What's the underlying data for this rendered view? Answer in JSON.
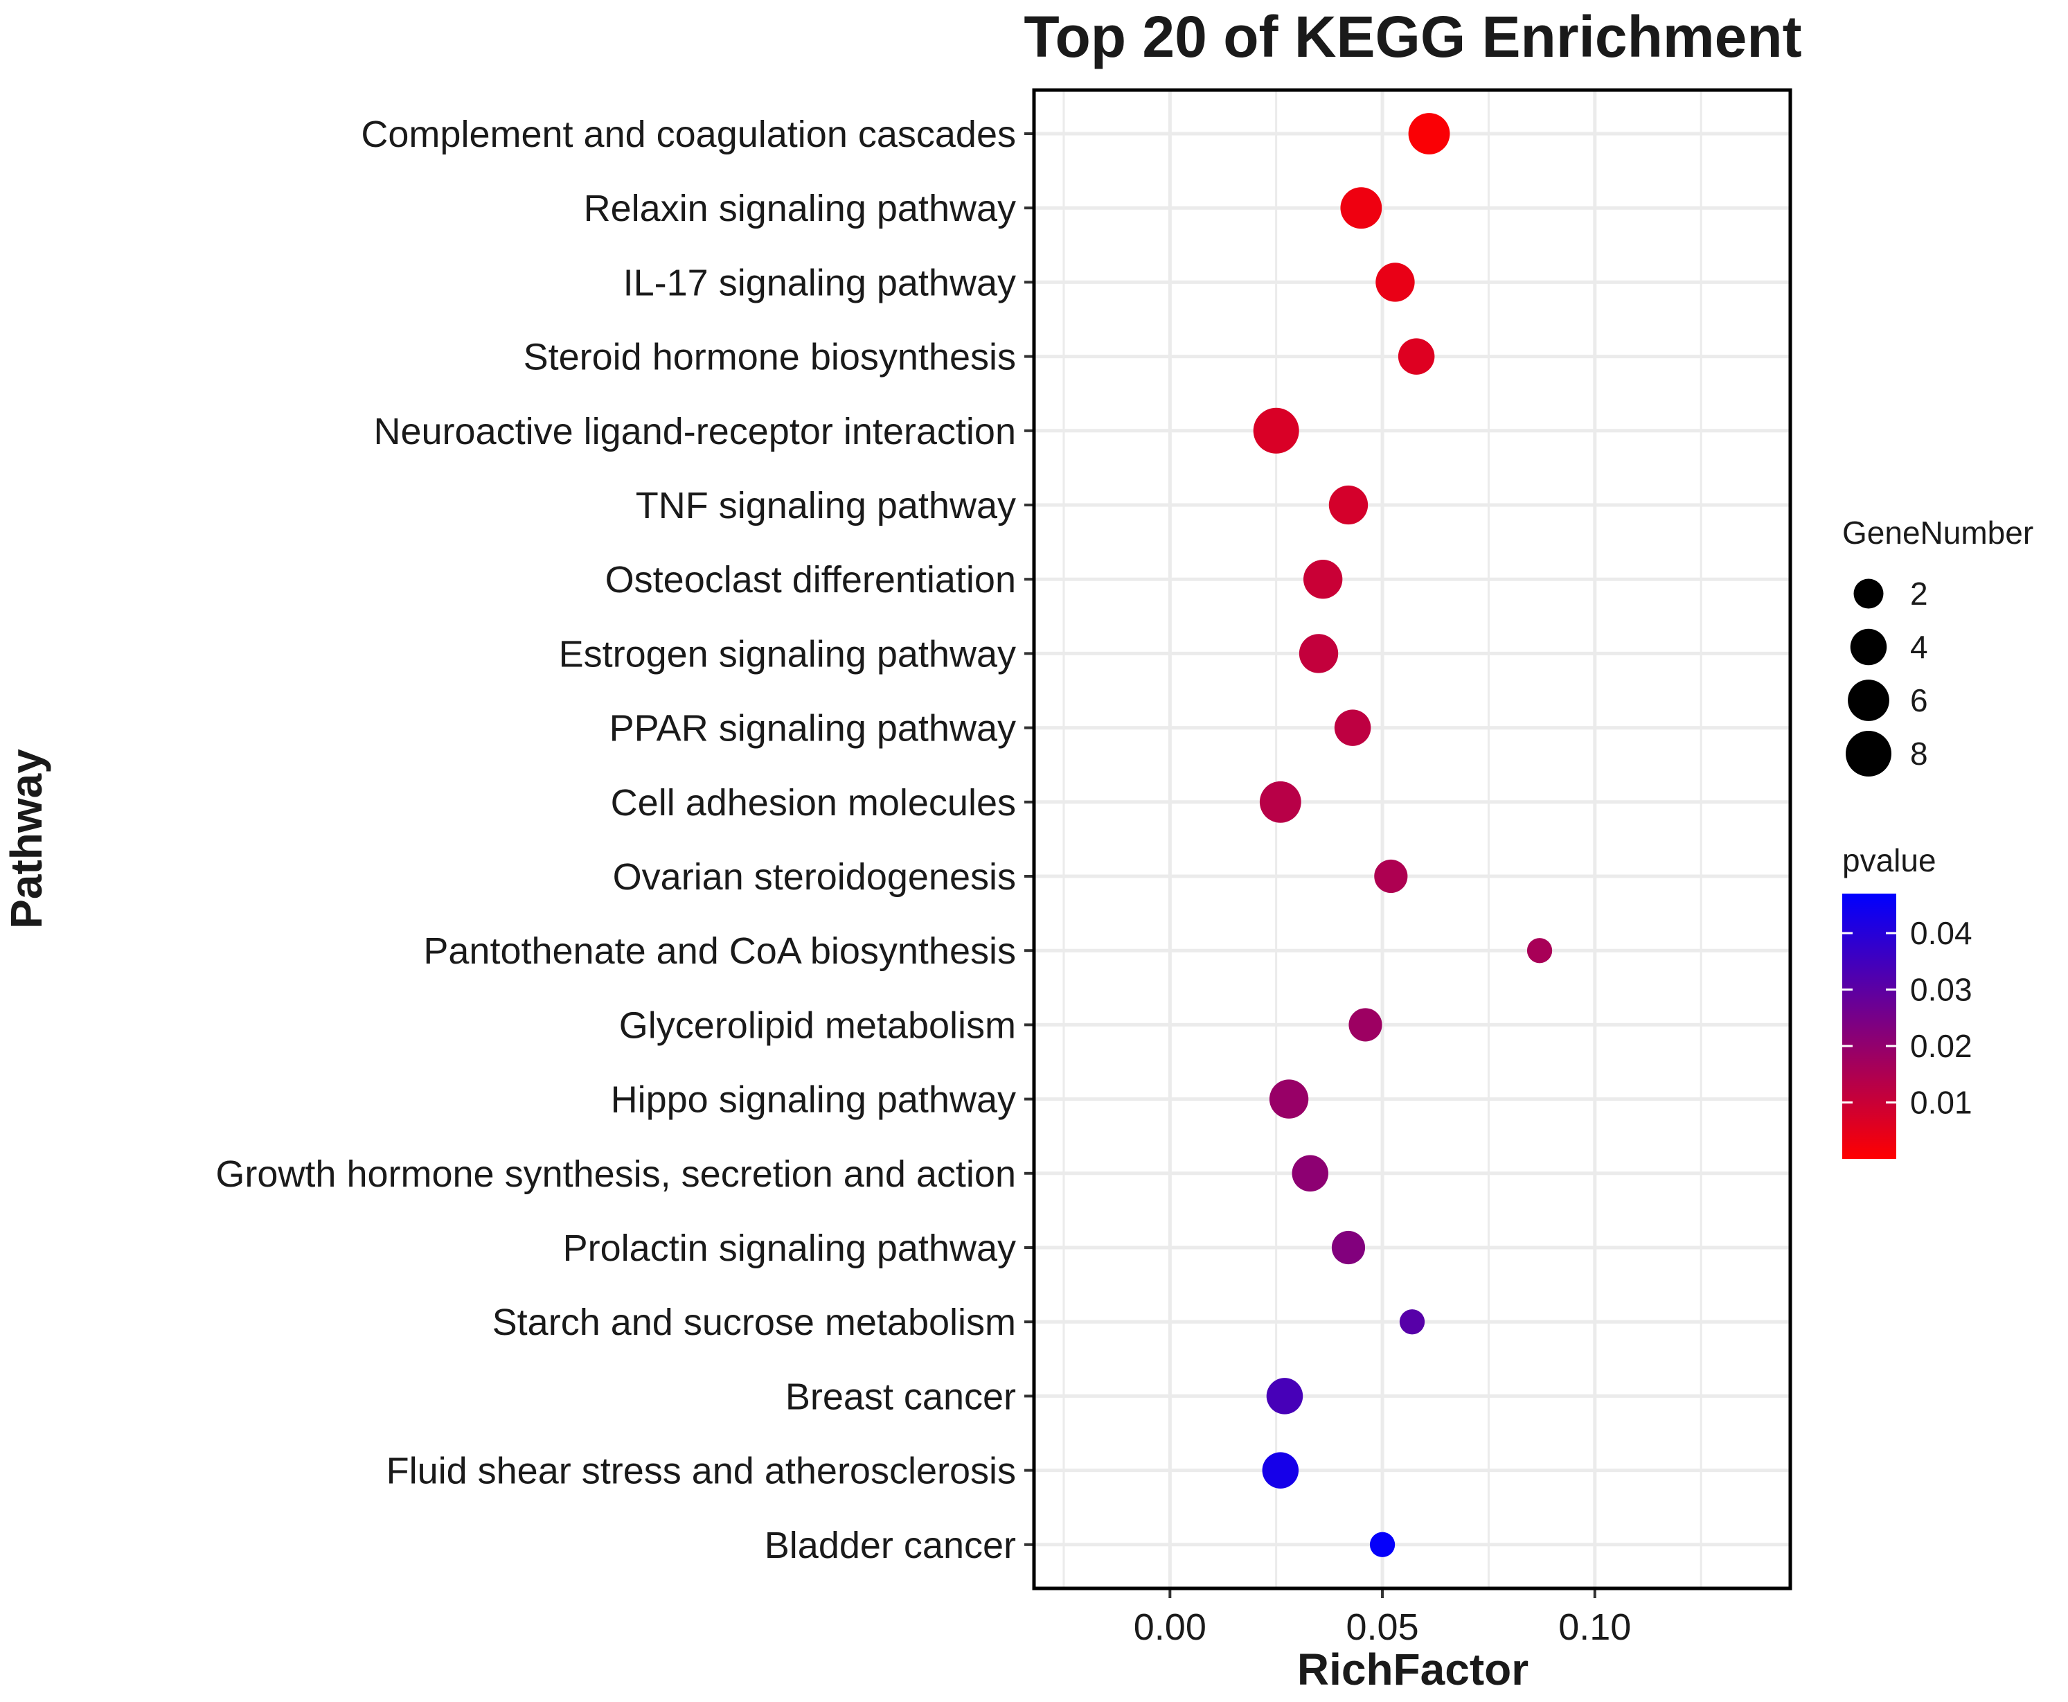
{
  "chart_data": {
    "type": "scatter",
    "title": "Top 20 of KEGG Enrichment",
    "xlabel": "RichFactor",
    "ylabel": "Pathway",
    "xlim": [
      -0.032,
      0.146
    ],
    "xticks": [
      0.0,
      0.05,
      0.1
    ],
    "xtick_labels": [
      "0.00",
      "0.05",
      "0.10"
    ],
    "grid": true,
    "categories": [
      "Complement and coagulation cascades",
      "Relaxin signaling pathway",
      "IL-17 signaling pathway",
      "Steroid hormone biosynthesis",
      "Neuroactive ligand-receptor interaction",
      "TNF signaling pathway",
      "Osteoclast differentiation",
      "Estrogen signaling pathway",
      "PPAR signaling pathway",
      "Cell adhesion molecules",
      "Ovarian steroidogenesis",
      "Pantothenate and CoA biosynthesis",
      "Glycerolipid metabolism",
      "Hippo signaling pathway",
      "Growth hormone synthesis, secretion and action",
      "Prolactin signaling pathway",
      "Starch and sucrose metabolism",
      "Breast cancer",
      "Fluid shear stress and atherosclerosis",
      "Bladder cancer"
    ],
    "rich_factor": [
      0.061,
      0.045,
      0.053,
      0.058,
      0.025,
      0.042,
      0.036,
      0.035,
      0.043,
      0.026,
      0.052,
      0.087,
      0.046,
      0.028,
      0.033,
      0.042,
      0.057,
      0.027,
      0.026,
      0.05
    ],
    "gene_number": [
      6,
      6,
      5,
      4,
      8,
      5,
      5,
      5,
      4,
      6,
      3,
      1,
      3,
      5,
      4,
      3,
      1,
      4,
      4,
      1
    ],
    "pvalue": [
      0.001,
      0.003,
      0.004,
      0.006,
      0.007,
      0.008,
      0.01,
      0.011,
      0.012,
      0.013,
      0.015,
      0.016,
      0.018,
      0.019,
      0.021,
      0.023,
      0.031,
      0.034,
      0.043,
      0.046
    ],
    "size_legend": {
      "title": "GeneNumber",
      "values": [
        2,
        4,
        6,
        8
      ],
      "labels": [
        "2",
        "4",
        "6",
        "8"
      ]
    },
    "color_legend": {
      "title": "pvalue",
      "range": [
        0.0,
        0.047
      ],
      "ticks": [
        0.04,
        0.03,
        0.02,
        0.01
      ],
      "tick_labels": [
        "0.04",
        "0.03",
        "0.02",
        "0.01"
      ],
      "low_color": "#ff0000",
      "high_color": "#0000ff"
    }
  }
}
